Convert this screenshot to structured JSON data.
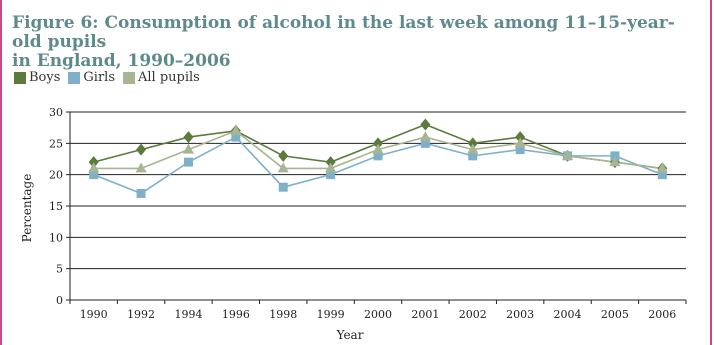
{
  "figure": {
    "title_line1": "Figure 6: Consumption of alcohol in the last week among 11–15-year-old pupils",
    "title_line2": "in England, 1990–2006"
  },
  "chart_data": {
    "type": "line",
    "categories": [
      "1990",
      "1992",
      "1994",
      "1996",
      "1998",
      "1999",
      "2000",
      "2001",
      "2002",
      "2003",
      "2004",
      "2005",
      "2006"
    ],
    "xlabel": "Year",
    "ylabel": "Percentage",
    "ylim": [
      0,
      30
    ],
    "yticks": [
      0,
      5,
      10,
      15,
      20,
      25,
      30
    ],
    "grid": "horizontal",
    "legend_position": "top-left",
    "series": [
      {
        "name": "Boys",
        "color": "#5b7b3c",
        "marker": "diamond",
        "values": [
          22,
          24,
          26,
          27,
          23,
          22,
          25,
          28,
          25,
          26,
          23,
          22,
          21
        ]
      },
      {
        "name": "Girls",
        "color": "#7fb0c9",
        "marker": "square",
        "values": [
          20,
          17,
          22,
          26,
          18,
          20,
          23,
          25,
          23,
          24,
          23,
          23,
          20
        ]
      },
      {
        "name": "All pupils",
        "color": "#a7b594",
        "marker": "triangle",
        "values": [
          21,
          21,
          24,
          27,
          21,
          21,
          24,
          26,
          24,
          25,
          23,
          22,
          21
        ]
      }
    ]
  }
}
